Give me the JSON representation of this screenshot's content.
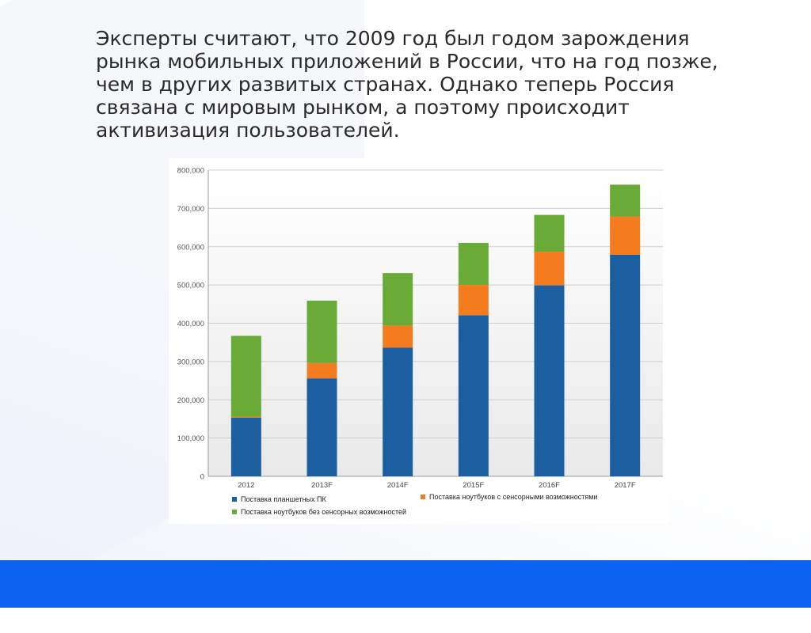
{
  "slide": {
    "text_lines": [
      "Эксперты считают, что 2009 год был годом зарождения",
      "рынка мобильных приложений в России, что на год позже,",
      "чем в других развитых странах. Однако теперь Россия",
      "связана с мировым рынком, а поэтому происходит",
      "активизация пользователей."
    ]
  },
  "chart_data": {
    "type": "bar",
    "stacked": true,
    "categories": [
      "2012",
      "2013F",
      "2014F",
      "2015F",
      "2016F",
      "2017F"
    ],
    "series": [
      {
        "name": "Поставка планшетных ПК",
        "color": "#1b5fa1",
        "values": [
          153000,
          256000,
          336000,
          421000,
          499000,
          579000
        ]
      },
      {
        "name": "Поставка ноутбуков с сенсорными возможностями",
        "color": "#f57c1e",
        "values": [
          3000,
          40000,
          58000,
          79000,
          88000,
          100000
        ]
      },
      {
        "name": "Поставка ноутбуков без сенсорных возможностей",
        "color": "#6aaa37",
        "values": [
          211000,
          163000,
          137000,
          110000,
          96000,
          83000
        ]
      }
    ],
    "ylim": [
      0,
      800000
    ],
    "yticks": [
      0,
      100000,
      200000,
      300000,
      400000,
      500000,
      600000,
      700000,
      800000
    ],
    "ytick_labels": [
      "0",
      "100,000",
      "200,000",
      "300,000",
      "400,000",
      "500,000",
      "600,000",
      "700,000",
      "800,000"
    ],
    "grid": true,
    "legend_position": "bottom",
    "title": "",
    "xlabel": "",
    "ylabel": ""
  }
}
